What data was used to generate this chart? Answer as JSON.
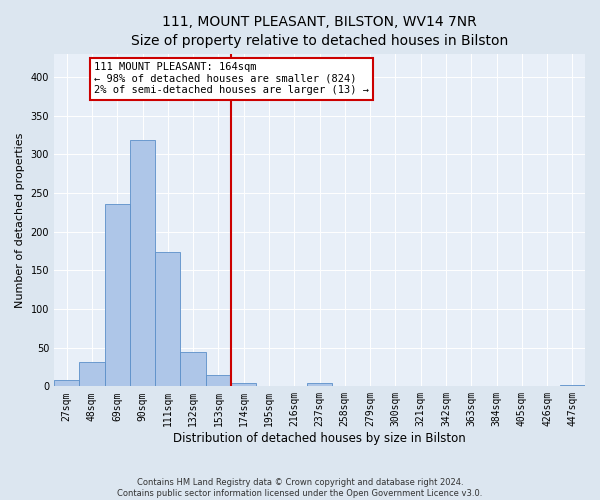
{
  "title": "111, MOUNT PLEASANT, BILSTON, WV14 7NR",
  "subtitle": "Size of property relative to detached houses in Bilston",
  "xlabel": "Distribution of detached houses by size in Bilston",
  "ylabel": "Number of detached properties",
  "bin_labels": [
    "27sqm",
    "48sqm",
    "69sqm",
    "90sqm",
    "111sqm",
    "132sqm",
    "153sqm",
    "174sqm",
    "195sqm",
    "216sqm",
    "237sqm",
    "258sqm",
    "279sqm",
    "300sqm",
    "321sqm",
    "342sqm",
    "363sqm",
    "384sqm",
    "405sqm",
    "426sqm",
    "447sqm"
  ],
  "bar_heights": [
    8,
    32,
    236,
    319,
    174,
    45,
    15,
    4,
    0,
    0,
    4,
    0,
    1,
    0,
    0,
    0,
    0,
    0,
    0,
    0,
    2
  ],
  "bar_color": "#aec6e8",
  "bar_edge_color": "#5b8fc9",
  "vline_color": "#cc0000",
  "annotation_text": "111 MOUNT PLEASANT: 164sqm\n← 98% of detached houses are smaller (824)\n2% of semi-detached houses are larger (13) →",
  "annotation_box_color": "#ffffff",
  "annotation_box_edge_color": "#cc0000",
  "ylim": [
    0,
    430
  ],
  "yticks": [
    0,
    50,
    100,
    150,
    200,
    250,
    300,
    350,
    400
  ],
  "footer": "Contains HM Land Registry data © Crown copyright and database right 2024.\nContains public sector information licensed under the Open Government Licence v3.0.",
  "bg_color": "#dce6f0",
  "plot_bg_color": "#e8eff8",
  "title_fontsize": 10,
  "subtitle_fontsize": 9,
  "xlabel_fontsize": 8.5,
  "ylabel_fontsize": 8,
  "tick_fontsize": 7,
  "annotation_fontsize": 7.5,
  "footer_fontsize": 6
}
